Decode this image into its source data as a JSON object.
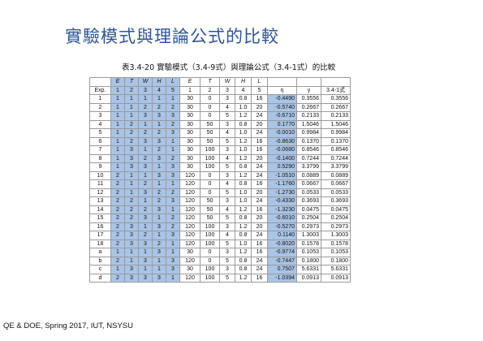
{
  "slide_title": "實驗模式與理論公式的比較",
  "table_caption": "表3.4-20  實驗模式（3.4-9式）與理論公式（3.4-1式）的比較",
  "footer": "QE & DOE, Spring 2017, IUT, NSYSU",
  "colors": {
    "title": "#2f5597",
    "highlight": "#a9c4e6",
    "grid": "#9a9a9a"
  },
  "header1": [
    "",
    "E",
    "T",
    "W",
    "H",
    "L",
    "E",
    "T",
    "W",
    "H",
    "L",
    "",
    "",
    ""
  ],
  "header2": [
    "Exp.",
    "1",
    "2",
    "3",
    "4",
    "5",
    "1",
    "2",
    "3",
    "4",
    "5",
    "η",
    "y",
    "3.4-1式"
  ],
  "rows": [
    [
      "1",
      "1",
      "1",
      "1",
      "1",
      "1",
      "30",
      "0",
      "3",
      "0.8",
      "16",
      "-0.4490",
      "0.3556",
      "0.3556"
    ],
    [
      "2",
      "1",
      "1",
      "2",
      "2",
      "2",
      "30",
      "0",
      "4",
      "1.0",
      "20",
      "-0.5740",
      "0.2667",
      "0.2667"
    ],
    [
      "3",
      "1",
      "1",
      "3",
      "3",
      "3",
      "30",
      "0",
      "5",
      "1.2",
      "24",
      "-0.6710",
      "0.2133",
      "0.2133"
    ],
    [
      "4",
      "1",
      "2",
      "1",
      "1",
      "2",
      "30",
      "50",
      "3",
      "0.8",
      "20",
      "0.1770",
      "1.5046",
      "1.5046"
    ],
    [
      "5",
      "1",
      "2",
      "2",
      "2",
      "3",
      "30",
      "50",
      "4",
      "1.0",
      "24",
      "-0.0010",
      "0.9984",
      "0.9984"
    ],
    [
      "6",
      "1",
      "2",
      "3",
      "3",
      "1",
      "30",
      "50",
      "5",
      "1.2",
      "16",
      "-0.8630",
      "0.1370",
      "0.1370"
    ],
    [
      "7",
      "1",
      "3",
      "1",
      "2",
      "1",
      "30",
      "100",
      "3",
      "1.0",
      "16",
      "-0.0680",
      "0.8546",
      "0.8546"
    ],
    [
      "8",
      "1",
      "3",
      "2",
      "3",
      "2",
      "30",
      "100",
      "4",
      "1.2",
      "20",
      "-0.1400",
      "0.7244",
      "0.7244"
    ],
    [
      "9",
      "1",
      "3",
      "3",
      "1",
      "3",
      "30",
      "100",
      "5",
      "0.8",
      "24",
      "0.5290",
      "3.3799",
      "3.3799"
    ],
    [
      "10",
      "2",
      "1",
      "1",
      "3",
      "3",
      "120",
      "0",
      "3",
      "1.2",
      "24",
      "-1.0510",
      "0.0889",
      "0.0889"
    ],
    [
      "11",
      "2",
      "1",
      "2",
      "1",
      "1",
      "120",
      "0",
      "4",
      "0.8",
      "16",
      "-1.1760",
      "0.0667",
      "0.0667"
    ],
    [
      "12",
      "2",
      "1",
      "3",
      "2",
      "2",
      "120",
      "0",
      "5",
      "1.0",
      "20",
      "-1.2730",
      "0.0533",
      "0.0533"
    ],
    [
      "13",
      "2",
      "2",
      "1",
      "2",
      "3",
      "120",
      "50",
      "3",
      "1.0",
      "24",
      "-0.4330",
      "0.3693",
      "0.3693"
    ],
    [
      "14",
      "2",
      "2",
      "2",
      "3",
      "1",
      "120",
      "50",
      "4",
      "1.2",
      "16",
      "-1.3230",
      "0.0475",
      "0.0475"
    ],
    [
      "15",
      "2",
      "2",
      "3",
      "1",
      "2",
      "120",
      "50",
      "5",
      "0.8",
      "20",
      "-0.6010",
      "0.2504",
      "0.2504"
    ],
    [
      "16",
      "2",
      "3",
      "1",
      "3",
      "2",
      "120",
      "100",
      "3",
      "1.2",
      "20",
      "-0.5270",
      "0.2973",
      "0.2973"
    ],
    [
      "17",
      "2",
      "3",
      "2",
      "1",
      "3",
      "120",
      "100",
      "4",
      "0.8",
      "24",
      "0.1140",
      "1.3003",
      "1.3003"
    ],
    [
      "18",
      "2",
      "3",
      "3",
      "2",
      "1",
      "120",
      "100",
      "5",
      "1.0",
      "16",
      "-0.8020",
      "0.1578",
      "0.1578"
    ],
    [
      "a",
      "1",
      "1",
      "1",
      "3",
      "1",
      "30",
      "0",
      "3",
      "1.2",
      "16",
      "-0.9774",
      "0.1053",
      "0.1053"
    ],
    [
      "b",
      "2",
      "1",
      "3",
      "1",
      "3",
      "120",
      "0",
      "5",
      "0.8",
      "24",
      "-0.7447",
      "0.1800",
      "0.1800"
    ],
    [
      "c",
      "1",
      "3",
      "1",
      "1",
      "3",
      "30",
      "100",
      "3",
      "0.8",
      "24",
      "0.7507",
      "5.6331",
      "5.6331"
    ],
    [
      "d",
      "2",
      "3",
      "3",
      "3",
      "1",
      "120",
      "100",
      "5",
      "1.2",
      "16",
      "-1.0394",
      "0.0913",
      "0.0913"
    ]
  ]
}
